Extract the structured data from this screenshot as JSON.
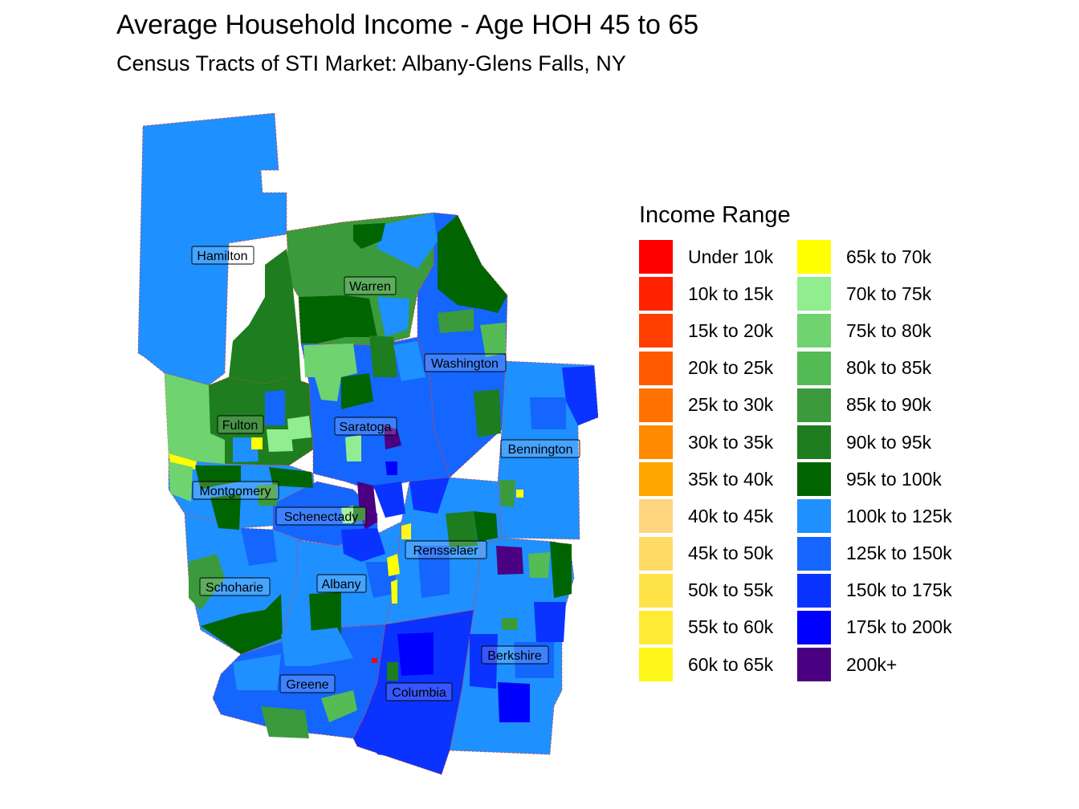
{
  "title": "Average Household Income - Age HOH 45 to 65",
  "subtitle": "Census Tracts of STI Market: Albany-Glens Falls, NY",
  "legend": {
    "title": "Income Range",
    "items": [
      {
        "label": "Under 10k",
        "color": "#FF0000"
      },
      {
        "label": "10k to 15k",
        "color": "#FF2200"
      },
      {
        "label": "15k to 20k",
        "color": "#FF3F00"
      },
      {
        "label": "20k to 25k",
        "color": "#FF5A00"
      },
      {
        "label": "25k to 30k",
        "color": "#FF7100"
      },
      {
        "label": "30k to 35k",
        "color": "#FF8A00"
      },
      {
        "label": "35k to 40k",
        "color": "#FFA500"
      },
      {
        "label": "40k to 45k",
        "color": "#FFD580"
      },
      {
        "label": "45k to 50k",
        "color": "#FFDB66"
      },
      {
        "label": "50k to 55k",
        "color": "#FFE349"
      },
      {
        "label": "55k to 60k",
        "color": "#FFEB33"
      },
      {
        "label": "60k to 65k",
        "color": "#FFF61A"
      },
      {
        "label": "65k to 70k",
        "color": "#FFFF00"
      },
      {
        "label": "70k to 75k",
        "color": "#90EE90"
      },
      {
        "label": "75k to 80k",
        "color": "#6FD36F"
      },
      {
        "label": "80k to 85k",
        "color": "#55BB55"
      },
      {
        "label": "85k to 90k",
        "color": "#3B9A3B"
      },
      {
        "label": "90k to 95k",
        "color": "#1E7D1E"
      },
      {
        "label": "95k to 100k",
        "color": "#006400"
      },
      {
        "label": "100k to 125k",
        "color": "#1E90FF"
      },
      {
        "label": "125k to 150k",
        "color": "#1466FF"
      },
      {
        "label": "150k to 175k",
        "color": "#0A33FF"
      },
      {
        "label": "175k to 200k",
        "color": "#0000FF"
      },
      {
        "label": "200k+",
        "color": "#4B0082"
      }
    ]
  },
  "counties": [
    "Hamilton",
    "Warren",
    "Washington",
    "Fulton",
    "Saratoga",
    "Bennington",
    "Montgomery",
    "Schenectady",
    "Rensselaer",
    "Schoharie",
    "Albany",
    "Berkshire",
    "Greene",
    "Columbia"
  ]
}
